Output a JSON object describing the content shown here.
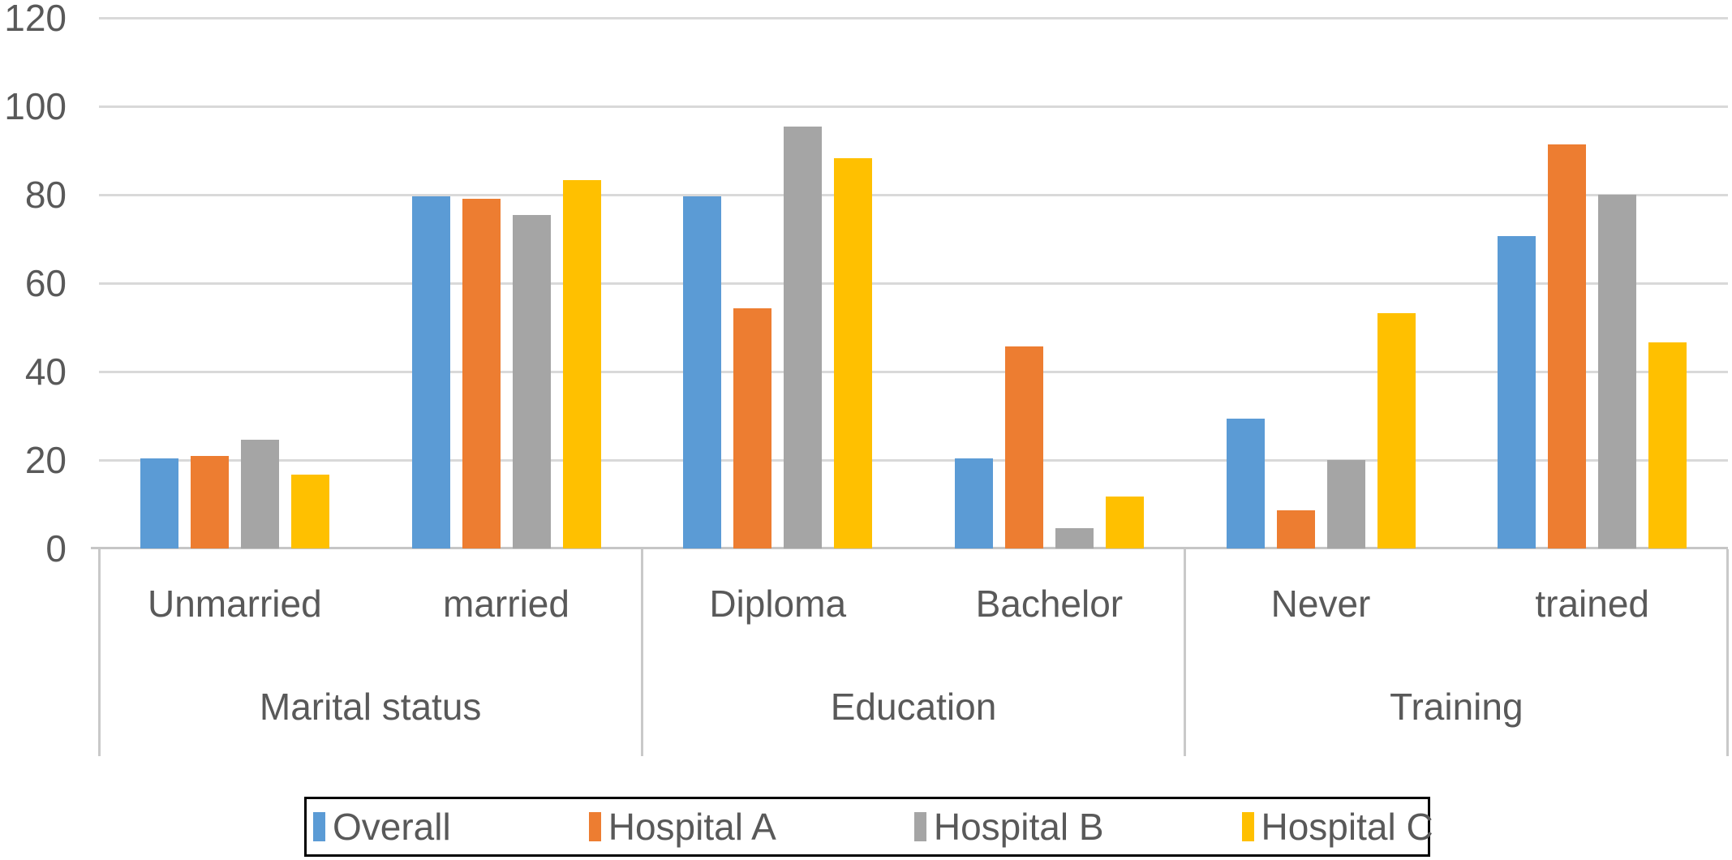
{
  "chart_data": {
    "type": "bar",
    "categories": [
      "Unmarried",
      "married",
      "Diploma",
      "Bachelor",
      "Never",
      "trained"
    ],
    "group_axis": [
      {
        "label": "Marital status",
        "categories": [
          "Unmarried",
          "married"
        ]
      },
      {
        "label": "Education",
        "categories": [
          "Diploma",
          "Bachelor"
        ]
      },
      {
        "label": "Training",
        "categories": [
          "Never",
          "trained"
        ]
      }
    ],
    "series": [
      {
        "name": "Overall",
        "color": "#5B9BD5",
        "values": [
          20.4,
          79.6,
          79.6,
          20.4,
          29.4,
          70.6
        ]
      },
      {
        "name": "Hospital A",
        "color": "#ED7D31",
        "values": [
          21.0,
          79.0,
          54.3,
          45.7,
          8.6,
          91.4
        ]
      },
      {
        "name": "Hospital B",
        "color": "#A5A5A5",
        "values": [
          24.6,
          75.4,
          95.4,
          4.6,
          20.0,
          80.0
        ]
      },
      {
        "name": "Hospital C",
        "color": "#FFC000",
        "values": [
          16.7,
          83.3,
          88.3,
          11.7,
          53.3,
          46.7
        ]
      }
    ],
    "y_axis": {
      "min": 0,
      "max": 120,
      "step": 20,
      "tick_labels": [
        "0",
        "20",
        "40",
        "60",
        "80",
        "100",
        "120"
      ]
    },
    "grid": true,
    "legend_position": "bottom",
    "styles": {
      "gridline_color": "#D9D9D9",
      "axis_line_color": "#C6C6C6",
      "text_color": "#595959",
      "legend_border_color": "#000000"
    }
  }
}
